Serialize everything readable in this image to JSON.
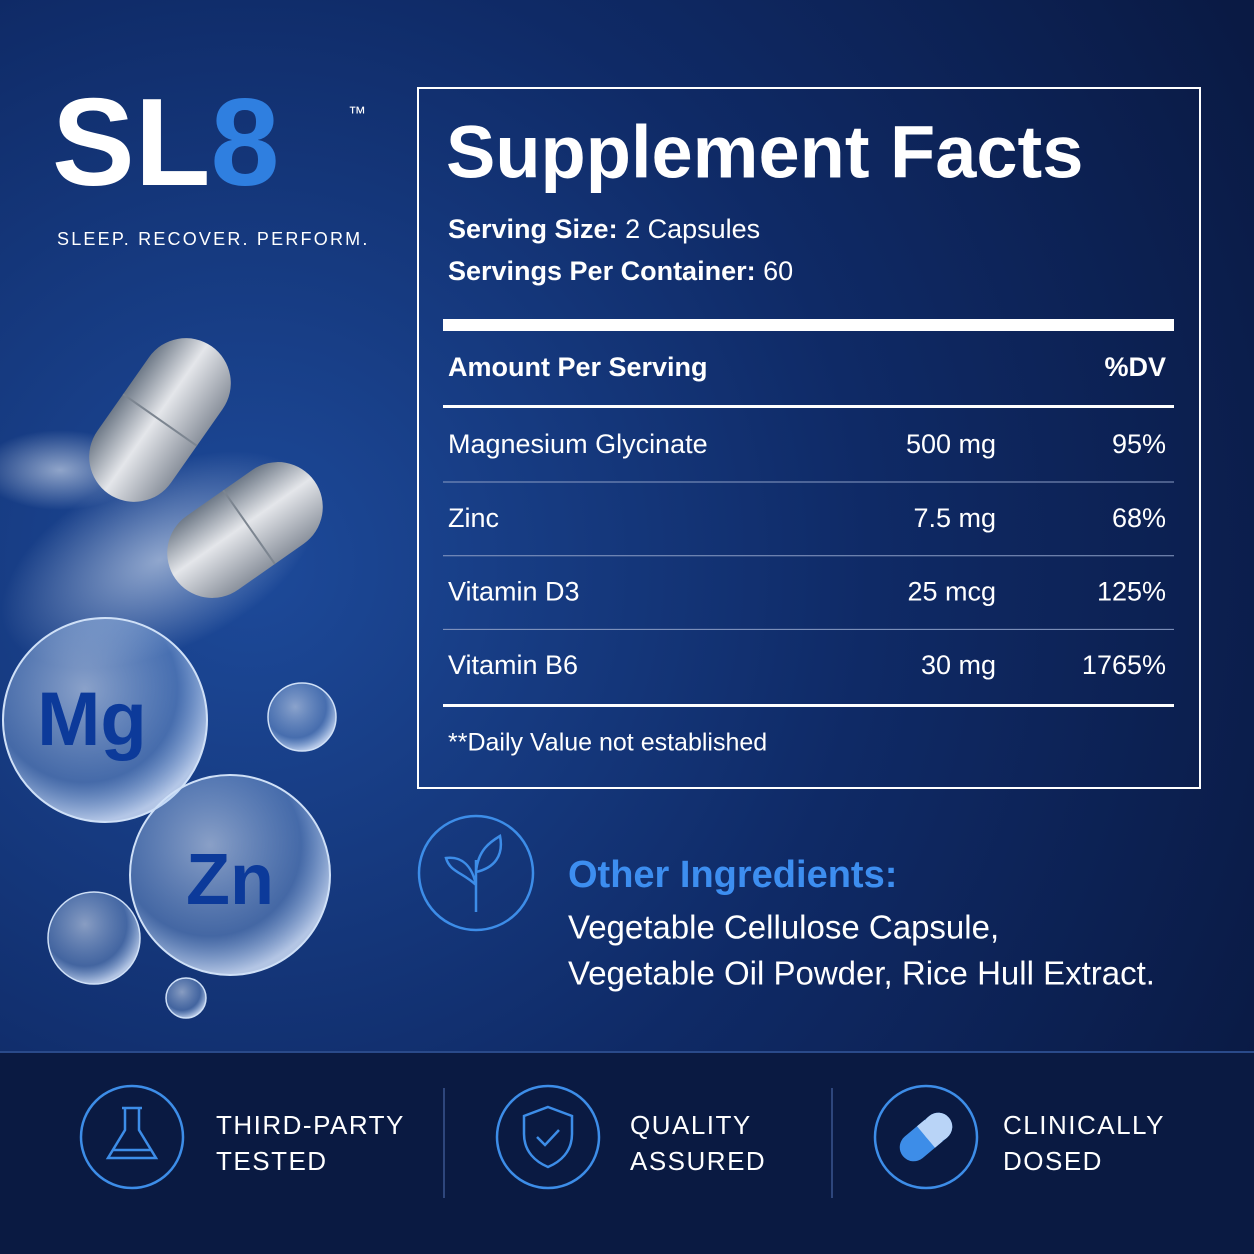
{
  "brand": {
    "logo": [
      "SL",
      "8"
    ],
    "trademark": "™",
    "tagline": "SLEEP. RECOVER. PERFORM."
  },
  "illustration": {
    "bubbles": [
      "Mg",
      "Zn"
    ]
  },
  "facts": {
    "title": "Supplement Facts",
    "serving_size": {
      "label": "Serving Size:",
      "value": "2 Capsules"
    },
    "servings": {
      "label": "Servings Per Container:",
      "value": "60"
    },
    "header": [
      "Amount Per Serving",
      "%DV"
    ],
    "rows": [
      [
        "Magnesium Glycinate",
        "500 mg",
        "95%"
      ],
      [
        "Zinc",
        "7.5 mg",
        "68%"
      ],
      [
        "Vitamin D3",
        "25 mcg",
        "125%"
      ],
      [
        "Vitamin B6",
        "30 mg",
        "1765%"
      ]
    ],
    "footnote": "**Daily Value not established"
  },
  "other_ingredients": {
    "title": "Other Ingredients:",
    "lines": [
      "Vegetable Cellulose Capsule,",
      "Vegetable Oil Powder, Rice Hull Extract."
    ]
  },
  "badges": [
    [
      "THIRD-PARTY",
      "TESTED"
    ],
    [
      "QUALITY",
      "ASSURED"
    ],
    [
      "CLINICALLY",
      "DOSED"
    ]
  ]
}
